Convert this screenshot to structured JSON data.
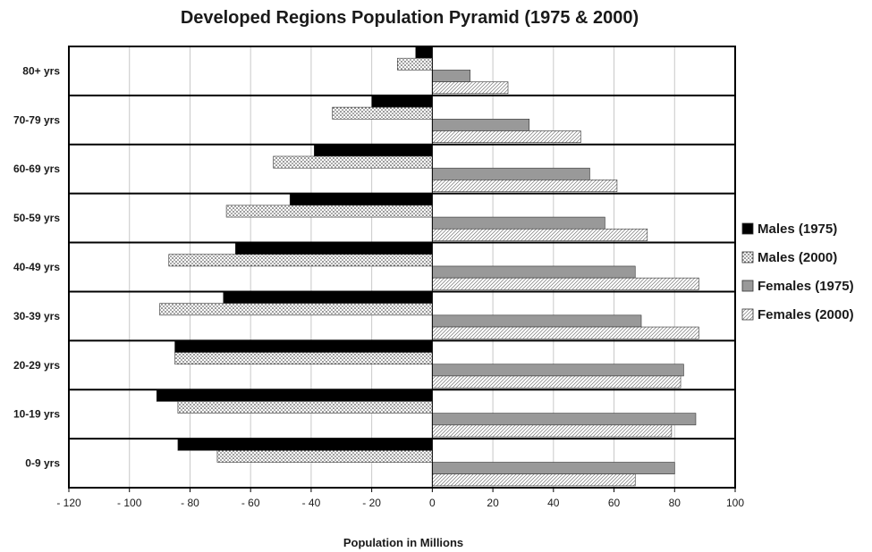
{
  "chart_data": {
    "type": "bar",
    "orientation": "horizontal",
    "title": "Developed Regions Population Pyramid (1975 & 2000)",
    "xlabel": "Population in Millions",
    "ylabel": "",
    "xlim": [
      -120,
      100
    ],
    "x_ticks": [
      -120,
      -100,
      -80,
      -60,
      -40,
      -20,
      0,
      20,
      40,
      60,
      80,
      100
    ],
    "x_tick_labels": [
      "- 120",
      "- 100",
      "- 80",
      "- 60",
      "- 40",
      "- 20",
      "0",
      "20",
      "40",
      "60",
      "80",
      "100"
    ],
    "grid": true,
    "legend_position": "right",
    "categories": [
      "80+ yrs",
      "70-79 yrs",
      "60-69 yrs",
      "50-59 yrs",
      "40-49 yrs",
      "30-39 yrs",
      "20-29 yrs",
      "10-19 yrs",
      "0-9 yrs"
    ],
    "series": [
      {
        "name": "Males (1975)",
        "values": [
          -5.5,
          -20,
          -39,
          -47,
          -65,
          -69,
          -85,
          -91,
          -84
        ],
        "fill": "#000000",
        "pattern": "solid"
      },
      {
        "name": "Males (2000)",
        "values": [
          -11.5,
          -33,
          -52.5,
          -68,
          -87,
          -90,
          -85,
          -84,
          -71
        ],
        "fill": "#ffffff",
        "pattern": "dots"
      },
      {
        "name": "Females (1975)",
        "values": [
          12.5,
          32,
          52,
          57,
          67,
          69,
          83,
          87,
          80
        ],
        "fill": "#999999",
        "pattern": "solid"
      },
      {
        "name": "Females (2000)",
        "values": [
          25,
          49,
          61,
          71,
          88,
          88,
          82,
          79,
          67
        ],
        "fill": "#ffffff",
        "pattern": "diagonal"
      }
    ]
  }
}
